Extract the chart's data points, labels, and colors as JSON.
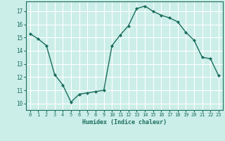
{
  "x": [
    0,
    1,
    2,
    3,
    4,
    5,
    6,
    7,
    8,
    9,
    10,
    11,
    12,
    13,
    14,
    15,
    16,
    17,
    18,
    19,
    20,
    21,
    22,
    23
  ],
  "y": [
    15.3,
    14.9,
    14.4,
    12.2,
    11.4,
    10.1,
    10.7,
    10.8,
    10.9,
    11.0,
    14.4,
    15.2,
    15.9,
    17.2,
    17.4,
    17.0,
    16.7,
    16.5,
    16.2,
    15.4,
    14.8,
    13.5,
    13.4,
    12.1
  ],
  "xlabel": "Humidex (Indice chaleur)",
  "xlim": [
    -0.5,
    23.5
  ],
  "ylim": [
    9.5,
    17.75
  ],
  "yticks": [
    10,
    11,
    12,
    13,
    14,
    15,
    16,
    17
  ],
  "xticks": [
    0,
    1,
    2,
    3,
    4,
    5,
    6,
    7,
    8,
    9,
    10,
    11,
    12,
    13,
    14,
    15,
    16,
    17,
    18,
    19,
    20,
    21,
    22,
    23
  ],
  "line_color": "#1a6e5e",
  "marker_color": "#1a6e5e",
  "bg_color": "#cceee8",
  "grid_color": "#ffffff",
  "axis_color": "#1a6e5e",
  "tick_label_color": "#1a6e5e",
  "xlabel_color": "#1a6e5e"
}
